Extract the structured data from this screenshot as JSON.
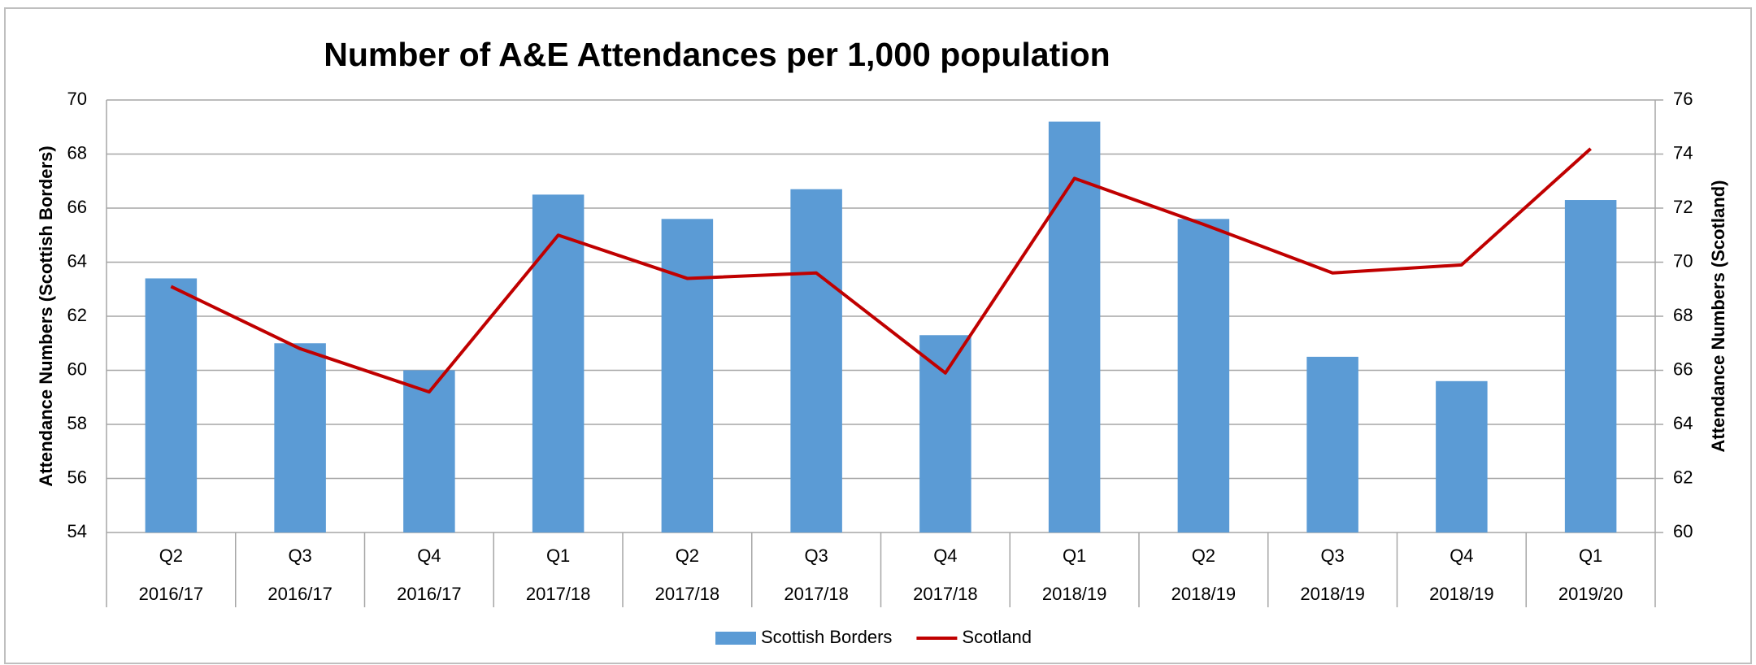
{
  "chart_data": {
    "type": "bar_line",
    "title": "Number of A&E Attendances per 1,000 population",
    "y_label": "Attendance Numbers (Scottish Borders)",
    "y2_label": "Attendance Numbers (Scotland)",
    "categories": [
      "Q2",
      "Q3",
      "Q4",
      "Q1",
      "Q2",
      "Q3",
      "Q4",
      "Q1",
      "Q2",
      "Q3",
      "Q4",
      "Q1"
    ],
    "category_groups": [
      "2016/17",
      "2016/17",
      "2016/17",
      "2017/18",
      "2017/18",
      "2017/18",
      "2017/18",
      "2018/19",
      "2018/19",
      "2018/19",
      "2018/19",
      "2019/20"
    ],
    "series": [
      {
        "name": "Scottish Borders",
        "type": "bar",
        "color": "#5b9bd5",
        "values": [
          63.4,
          61.0,
          60.0,
          66.5,
          65.6,
          66.7,
          61.3,
          69.2,
          65.6,
          60.5,
          59.6,
          66.3
        ]
      },
      {
        "name": "Scotland",
        "type": "line",
        "axis": "y2",
        "color": "#c00000",
        "values": [
          69.1,
          66.8,
          65.2,
          71.0,
          69.4,
          69.6,
          65.9,
          73.1,
          71.4,
          69.6,
          69.9,
          74.2
        ]
      }
    ],
    "ylim": [
      54,
      70
    ],
    "yticks": [
      54,
      56,
      58,
      60,
      62,
      64,
      66,
      68,
      70
    ],
    "y2lim": [
      60,
      76
    ],
    "y2ticks": [
      60,
      62,
      64,
      66,
      68,
      70,
      72,
      74,
      76
    ],
    "grid": true,
    "legend": "bottom"
  }
}
